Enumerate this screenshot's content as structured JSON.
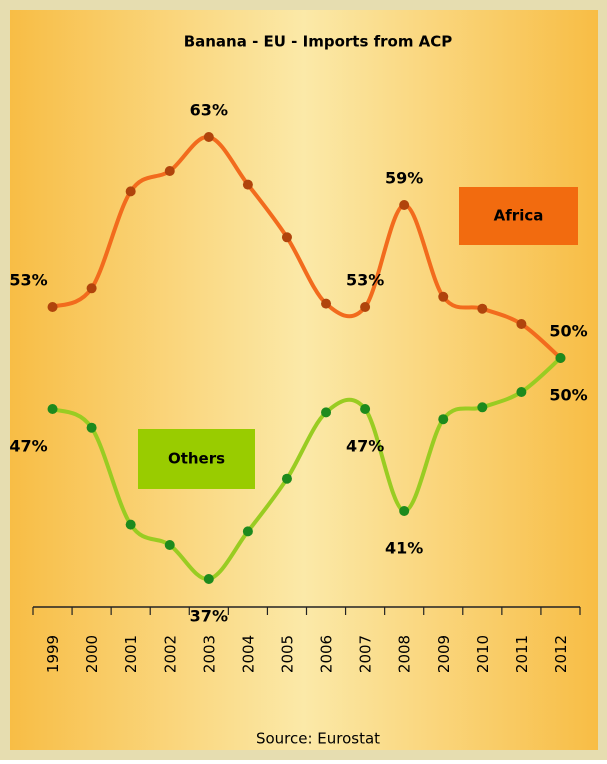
{
  "chart_data": {
    "type": "line",
    "title": "Banana - EU - Imports from ACP",
    "source": "Source: Eurostat",
    "categories": [
      "1999",
      "2000",
      "2001",
      "2002",
      "2003",
      "2004",
      "2005",
      "2006",
      "2007",
      "2008",
      "2009",
      "2010",
      "2011",
      "2012"
    ],
    "ylim": [
      35,
      65
    ],
    "series": [
      {
        "name": "Africa",
        "color": "#f26b1d",
        "marker_color": "#b0440c",
        "legend_color": "#f26b0f",
        "values": [
          53,
          54.1,
          59.8,
          61,
          63,
          60.2,
          57.1,
          53.2,
          53,
          59,
          53.6,
          52.9,
          52,
          50
        ],
        "value_labels": [
          "53%",
          null,
          null,
          null,
          "63%",
          null,
          null,
          null,
          "53%",
          "59%",
          null,
          null,
          null,
          "50%"
        ]
      },
      {
        "name": "Others",
        "color": "#99cc22",
        "marker_color": "#1d8a1d",
        "legend_color": "#99cc00",
        "values": [
          47,
          45.9,
          40.2,
          39,
          37,
          39.8,
          42.9,
          46.8,
          47,
          41,
          46.4,
          47.1,
          48,
          50
        ],
        "value_labels": [
          "47%",
          null,
          null,
          null,
          "37%",
          null,
          null,
          null,
          "47%",
          "41%",
          null,
          null,
          null,
          "50%"
        ]
      }
    ]
  }
}
